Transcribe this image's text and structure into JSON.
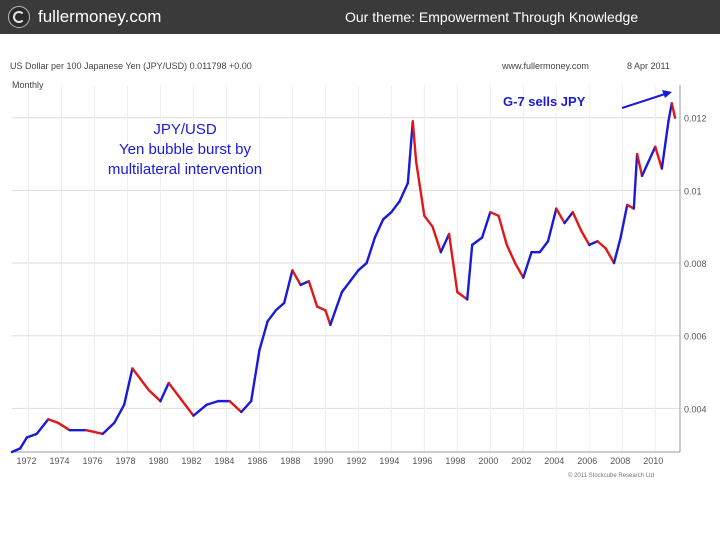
{
  "header": {
    "brand": "fullermoney.com",
    "theme": "Our theme: Empowerment Through Knowledge"
  },
  "chart_data": {
    "type": "line",
    "title": "US Dollar per 100 Japanese Yen (JPY/USD) 0.011798 +0.00",
    "source": "www.fullermoney.com",
    "date": "8 Apr 2011",
    "frequency": "Monthly",
    "copyright": "© 2011 Stockcube Research Ltd",
    "annotations": {
      "main": "JPY/USD\nYen bubble burst by\nmultilateral intervention",
      "arrow": "G-7 sells JPY"
    },
    "x_ticks": [
      "1972",
      "1974",
      "1976",
      "1978",
      "1980",
      "1982",
      "1984",
      "1986",
      "1988",
      "1990",
      "1992",
      "1994",
      "1996",
      "1998",
      "2000",
      "2002",
      "2004",
      "2006",
      "2008",
      "2010"
    ],
    "y_ticks": [
      "0.012",
      "0.01",
      "0.008",
      "0.006",
      "0.004"
    ],
    "ylim": [
      0.0028,
      0.0129
    ],
    "xlim": [
      1971.0,
      2011.5
    ],
    "colors": {
      "up": "#1a1ad8",
      "down": "#e01818",
      "annotation": "#1a1ad8"
    },
    "x": [
      1971.0,
      1971.5,
      1971.9,
      1972.5,
      1973.2,
      1973.8,
      1974.5,
      1975.5,
      1976.5,
      1977.2,
      1977.8,
      1978.3,
      1978.8,
      1979.3,
      1980.0,
      1980.5,
      1981.0,
      1981.5,
      1982.0,
      1982.8,
      1983.5,
      1984.2,
      1984.9,
      1985.5,
      1986.0,
      1986.5,
      1987.0,
      1987.5,
      1988.0,
      1988.5,
      1989.0,
      1989.5,
      1990.0,
      1990.3,
      1991.0,
      1991.5,
      1992.0,
      1992.5,
      1993.0,
      1993.5,
      1994.0,
      1994.5,
      1995.0,
      1995.3,
      1995.5,
      1996.0,
      1996.5,
      1997.0,
      1997.5,
      1998.0,
      1998.6,
      1998.9,
      1999.5,
      2000.0,
      2000.5,
      2001.0,
      2001.5,
      2002.0,
      2002.5,
      2003.0,
      2003.5,
      2004.0,
      2004.5,
      2005.0,
      2005.5,
      2006.0,
      2006.5,
      2007.0,
      2007.5,
      2007.9,
      2008.3,
      2008.7,
      2008.9,
      2009.2,
      2009.6,
      2010.0,
      2010.4,
      2010.8,
      2011.0,
      2011.2
    ],
    "y": [
      0.0028,
      0.0029,
      0.0032,
      0.0033,
      0.0037,
      0.0036,
      0.0034,
      0.0034,
      0.0033,
      0.0036,
      0.0041,
      0.0051,
      0.0048,
      0.0045,
      0.0042,
      0.0047,
      0.0044,
      0.0041,
      0.0038,
      0.0041,
      0.0042,
      0.0042,
      0.0039,
      0.0042,
      0.0056,
      0.0064,
      0.0067,
      0.0069,
      0.0078,
      0.0074,
      0.0075,
      0.0068,
      0.0067,
      0.0063,
      0.0072,
      0.0075,
      0.0078,
      0.008,
      0.0087,
      0.0092,
      0.0094,
      0.0097,
      0.0102,
      0.0119,
      0.0108,
      0.0093,
      0.009,
      0.0083,
      0.0088,
      0.0072,
      0.007,
      0.0085,
      0.0087,
      0.0094,
      0.0093,
      0.0085,
      0.008,
      0.0076,
      0.0083,
      0.0083,
      0.0086,
      0.0095,
      0.0091,
      0.0094,
      0.0089,
      0.0085,
      0.0086,
      0.0084,
      0.008,
      0.0087,
      0.0096,
      0.0095,
      0.011,
      0.0104,
      0.0108,
      0.0112,
      0.0106,
      0.0119,
      0.0124,
      0.012
    ]
  }
}
